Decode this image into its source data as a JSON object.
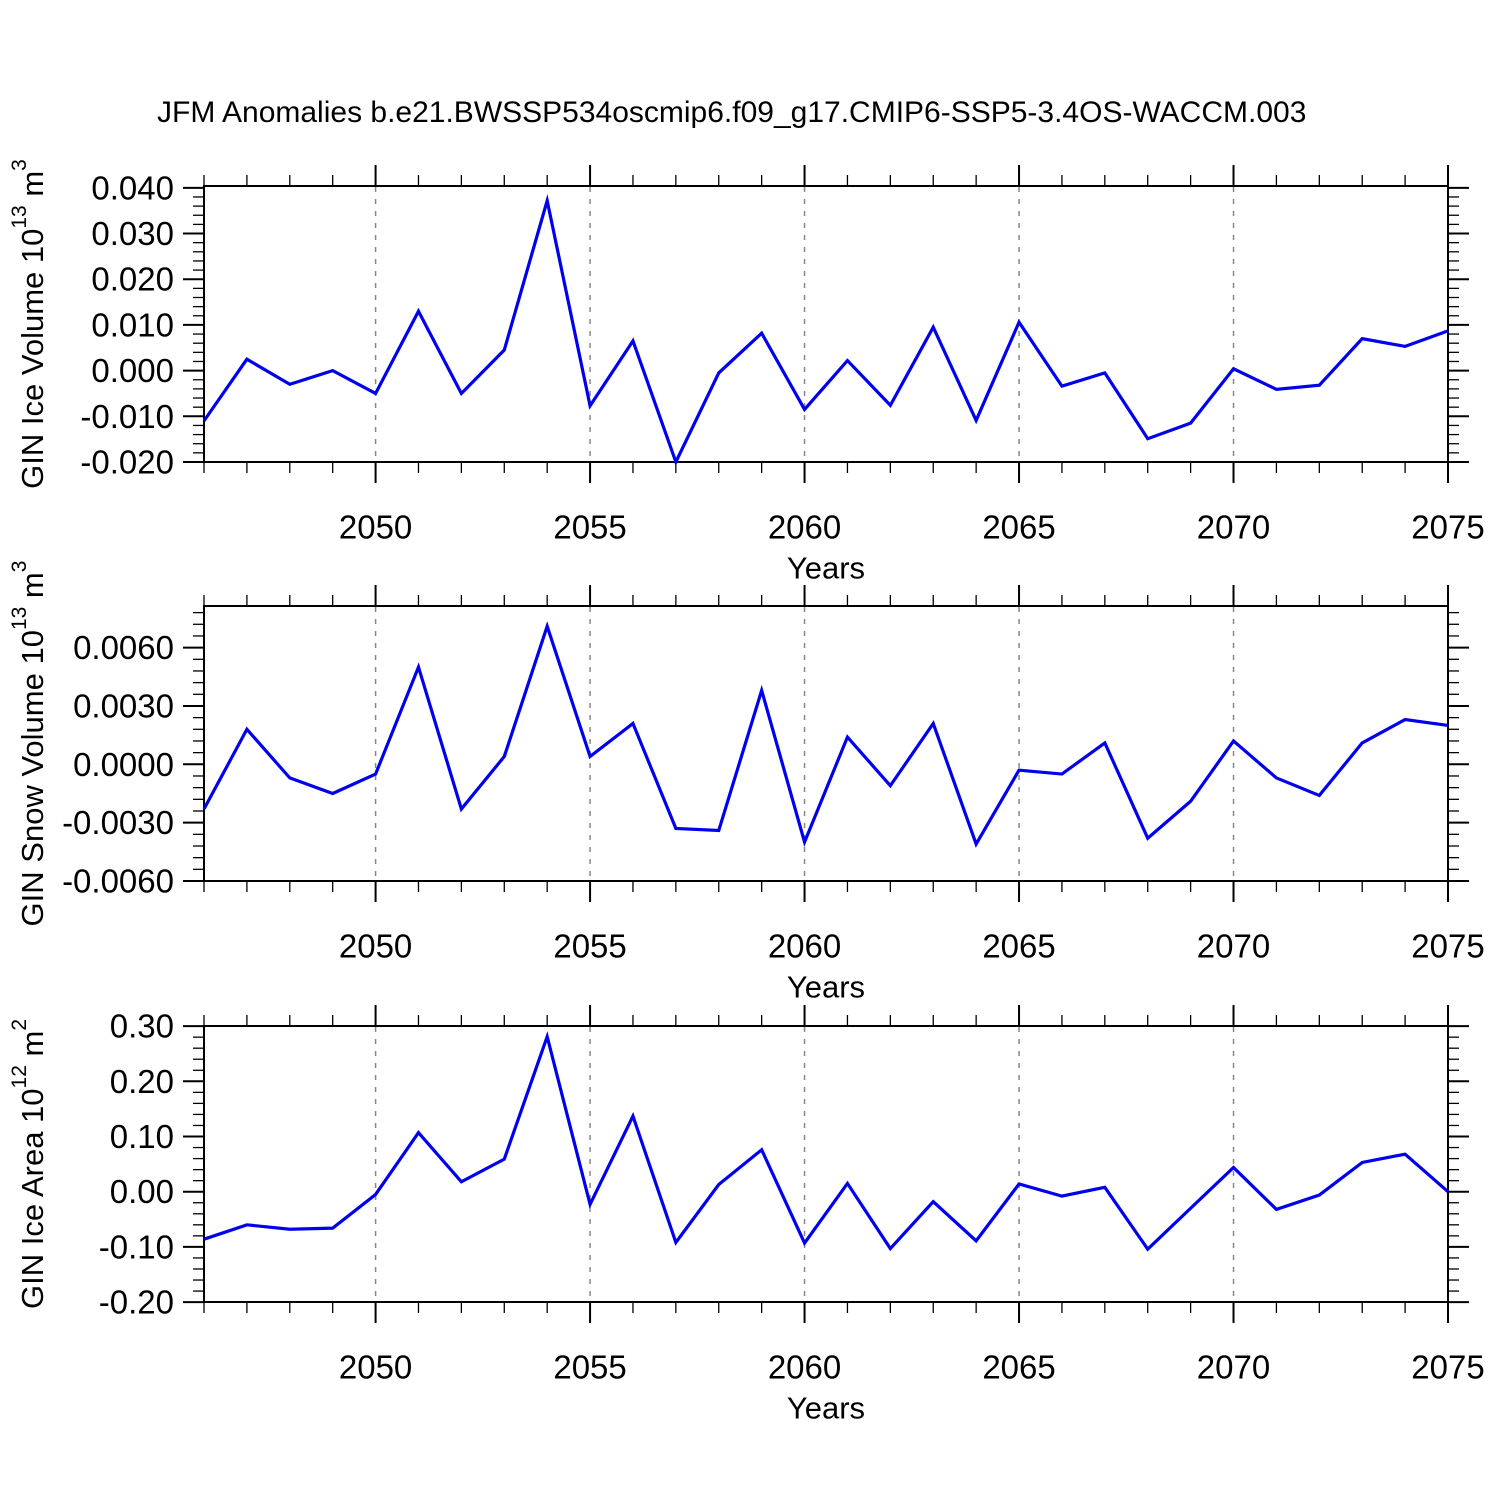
{
  "title": "JFM Anomalies b.e21.BWSSP534oscmip6.f09_g17.CMIP6-SSP5-3.4OS-WACCM.003",
  "colors": {
    "line": "#0000ee",
    "axis": "#000000",
    "grid": "#888888",
    "background": "#ffffff"
  },
  "chart_data": [
    {
      "type": "line",
      "ylabel": "GIN Ice Volume 10^13 m^3",
      "xlabel": "Years",
      "x": [
        2046,
        2047,
        2048,
        2049,
        2050,
        2051,
        2052,
        2053,
        2054,
        2055,
        2056,
        2057,
        2058,
        2059,
        2060,
        2061,
        2062,
        2063,
        2064,
        2065,
        2066,
        2067,
        2068,
        2069,
        2070,
        2071,
        2072,
        2073,
        2074,
        2075
      ],
      "values": [
        -0.011,
        0.0025,
        -0.003,
        0.0,
        -0.005,
        0.013,
        -0.005,
        0.0045,
        0.0372,
        -0.0077,
        0.0065,
        -0.02,
        -0.0005,
        0.0082,
        -0.0085,
        0.0022,
        -0.0076,
        0.0095,
        -0.0109,
        0.0106,
        -0.0034,
        -0.0005,
        -0.0149,
        -0.0115,
        0.0004,
        -0.0041,
        -0.0032,
        0.007,
        0.0053,
        0.0087
      ],
      "xlim": [
        2046,
        2075
      ],
      "ylim": [
        -0.02,
        0.0404
      ],
      "yticks": [
        0.04,
        0.03,
        0.02,
        0.01,
        0.0,
        -0.01,
        -0.02
      ],
      "ytick_labels": [
        "0.040",
        "0.030",
        "0.020",
        "0.010",
        "0.000",
        "-0.010",
        "-0.020"
      ],
      "ytick_minor_step": 0.002,
      "xticks": [
        2050,
        2055,
        2060,
        2065,
        2070,
        2075
      ],
      "xtick_labels": [
        "2050",
        "2055",
        "2060",
        "2065",
        "2070",
        "2075"
      ],
      "xtick_minor_step": 1,
      "grid_x": [
        2050,
        2055,
        2060,
        2065,
        2070
      ],
      "legend": "none",
      "grid": "dashed-vertical"
    },
    {
      "type": "line",
      "ylabel": "GIN Snow Volume 10^13 m^3",
      "xlabel": "Years",
      "x": [
        2046,
        2047,
        2048,
        2049,
        2050,
        2051,
        2052,
        2053,
        2054,
        2055,
        2056,
        2057,
        2058,
        2059,
        2060,
        2061,
        2062,
        2063,
        2064,
        2065,
        2066,
        2067,
        2068,
        2069,
        2070,
        2071,
        2072,
        2073,
        2074,
        2075
      ],
      "values": [
        -0.0023,
        0.0018,
        -0.0007,
        -0.0015,
        -0.0005,
        0.005,
        -0.0023,
        0.0004,
        0.0071,
        0.0004,
        0.0021,
        -0.0033,
        -0.0034,
        0.0038,
        -0.004,
        0.0014,
        -0.0011,
        0.0021,
        -0.0041,
        -0.0003,
        -0.0005,
        0.0011,
        -0.0038,
        -0.0019,
        0.0012,
        -0.0007,
        -0.0016,
        0.0011,
        0.0023,
        0.002
      ],
      "xlim": [
        2046,
        2075
      ],
      "ylim": [
        -0.006,
        0.00814
      ],
      "yticks": [
        0.006,
        0.003,
        0.0,
        -0.003,
        -0.006
      ],
      "ytick_labels": [
        "0.0060",
        "0.0030",
        "0.0000",
        "-0.0030",
        "-0.0060"
      ],
      "ytick_minor_step": 0.0006,
      "xticks": [
        2050,
        2055,
        2060,
        2065,
        2070,
        2075
      ],
      "xtick_labels": [
        "2050",
        "2055",
        "2060",
        "2065",
        "2070",
        "2075"
      ],
      "xtick_minor_step": 1,
      "grid_x": [
        2050,
        2055,
        2060,
        2065,
        2070
      ],
      "legend": "none",
      "grid": "dashed-vertical"
    },
    {
      "type": "line",
      "ylabel": "GIN Ice Area 10^12 m^2",
      "xlabel": "Years",
      "x": [
        2046,
        2047,
        2048,
        2049,
        2050,
        2051,
        2052,
        2053,
        2054,
        2055,
        2056,
        2057,
        2058,
        2059,
        2060,
        2061,
        2062,
        2063,
        2064,
        2065,
        2066,
        2067,
        2068,
        2069,
        2070,
        2071,
        2072,
        2073,
        2074,
        2075
      ],
      "values": [
        -0.086,
        -0.06,
        -0.068,
        -0.066,
        -0.005,
        0.107,
        0.018,
        0.059,
        0.281,
        -0.023,
        0.137,
        -0.092,
        0.013,
        0.076,
        -0.093,
        0.015,
        -0.103,
        -0.018,
        -0.089,
        0.014,
        -0.008,
        0.008,
        -0.104,
        -0.03,
        0.044,
        -0.032,
        -0.006,
        0.053,
        0.068,
        0.0
      ],
      "xlim": [
        2046,
        2075
      ],
      "ylim": [
        -0.1998,
        0.3002
      ],
      "yticks": [
        0.3,
        0.2,
        0.1,
        0.0,
        -0.1,
        -0.2
      ],
      "ytick_labels": [
        "0.30",
        "0.20",
        "0.10",
        "0.00",
        "-0.10",
        "-0.20"
      ],
      "ytick_minor_step": 0.02,
      "xticks": [
        2050,
        2055,
        2060,
        2065,
        2070,
        2075
      ],
      "xtick_labels": [
        "2050",
        "2055",
        "2060",
        "2065",
        "2070",
        "2075"
      ],
      "xtick_minor_step": 1,
      "grid_x": [
        2050,
        2055,
        2060,
        2065,
        2070
      ],
      "legend": "none",
      "grid": "dashed-vertical"
    }
  ]
}
